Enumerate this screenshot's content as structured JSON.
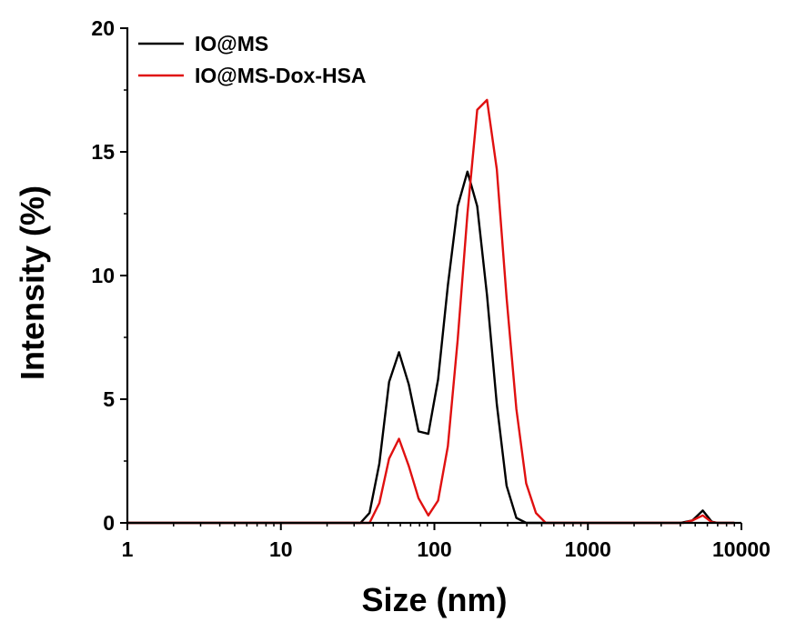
{
  "chart_data": {
    "type": "line",
    "xlabel": "Size (nm)",
    "ylabel": "Intensity (%)",
    "xscale": "log",
    "xlim": [
      1,
      10000
    ],
    "ylim": [
      0,
      20
    ],
    "x_ticks": [
      1,
      10,
      100,
      1000,
      10000
    ],
    "x_tick_labels": [
      "1",
      "10",
      "100",
      "1000",
      "10000"
    ],
    "y_ticks": [
      0,
      5,
      10,
      15,
      20
    ],
    "y_tick_labels": [
      "0",
      "5",
      "10",
      "15",
      "20"
    ],
    "grid": false,
    "legend_position": "top-left",
    "series": [
      {
        "name": "IO@MS",
        "color": "#000000",
        "points": [
          [
            1,
            0
          ],
          [
            33,
            0
          ],
          [
            37.8,
            0.4
          ],
          [
            43.8,
            2.4
          ],
          [
            50.7,
            5.7
          ],
          [
            58.8,
            6.9
          ],
          [
            68.1,
            5.6
          ],
          [
            78.8,
            3.7
          ],
          [
            91.3,
            3.6
          ],
          [
            105.7,
            5.8
          ],
          [
            122.4,
            9.6
          ],
          [
            141.8,
            12.8
          ],
          [
            164.2,
            14.2
          ],
          [
            190.1,
            12.8
          ],
          [
            220.2,
            9.2
          ],
          [
            255.0,
            4.8
          ],
          [
            295.3,
            1.5
          ],
          [
            342.0,
            0.2
          ],
          [
            396.1,
            0
          ],
          [
            4000,
            0
          ],
          [
            4800,
            0.1
          ],
          [
            5600,
            0.5
          ],
          [
            6400,
            0.05
          ],
          [
            7000,
            0
          ],
          [
            9000,
            0
          ]
        ]
      },
      {
        "name": "IO@MS-Dox-HSA",
        "color": "#e01010",
        "points": [
          [
            1,
            0
          ],
          [
            37.8,
            0
          ],
          [
            43.8,
            0.8
          ],
          [
            50.7,
            2.6
          ],
          [
            58.8,
            3.4
          ],
          [
            68.1,
            2.3
          ],
          [
            78.8,
            1.0
          ],
          [
            91.3,
            0.3
          ],
          [
            105.7,
            0.9
          ],
          [
            122.4,
            3.1
          ],
          [
            141.8,
            7.4
          ],
          [
            164.2,
            12.5
          ],
          [
            190.1,
            16.7
          ],
          [
            220.2,
            17.1
          ],
          [
            255.0,
            14.3
          ],
          [
            295.3,
            9.1
          ],
          [
            342.0,
            4.6
          ],
          [
            396.1,
            1.6
          ],
          [
            458.7,
            0.4
          ],
          [
            531.2,
            0
          ],
          [
            4200,
            0
          ],
          [
            4800,
            0.1
          ],
          [
            5600,
            0.3
          ],
          [
            6400,
            0.03
          ],
          [
            7000,
            0
          ],
          [
            9000,
            0
          ]
        ]
      }
    ]
  }
}
